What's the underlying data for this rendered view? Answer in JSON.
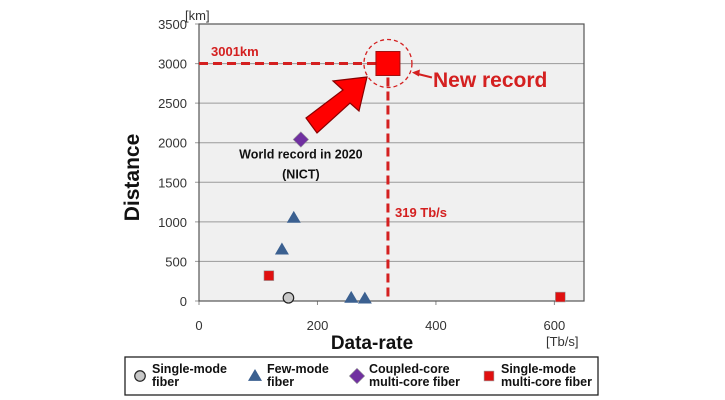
{
  "chart_data": {
    "type": "scatter",
    "xlabel": "Data-rate",
    "ylabel": "Distance",
    "x_unit": "[Tb/s]",
    "y_unit": "[km]",
    "xlim": [
      0,
      650
    ],
    "ylim": [
      0,
      3500
    ],
    "xticks": [
      0,
      200,
      400,
      600
    ],
    "yticks": [
      0,
      500,
      1000,
      1500,
      2000,
      2500,
      3000,
      3500
    ],
    "grid": "horizontal",
    "legend_placement": "bottom",
    "series": [
      {
        "name": "Single-mode fiber",
        "legend_lines": [
          "Single-mode",
          "fiber"
        ],
        "marker": "circle",
        "color": "#c8c8c8",
        "points": [
          [
            151,
            40
          ]
        ]
      },
      {
        "name": "Few-mode fiber",
        "legend_lines": [
          "Few-mode",
          "fiber"
        ],
        "marker": "triangle",
        "color": "#3b6090",
        "points": [
          [
            140,
            650
          ],
          [
            160,
            1050
          ],
          [
            257,
            40
          ],
          [
            280,
            30
          ]
        ]
      },
      {
        "name": "Coupled-core multi-core fiber",
        "legend_lines": [
          "Coupled-core",
          "multi-core fiber"
        ],
        "marker": "diamond",
        "color": "#7030a0",
        "points": [
          [
            172,
            2040
          ]
        ]
      },
      {
        "name": "Single-mode multi-core fiber",
        "legend_lines": [
          "Single-mode",
          "multi-core fiber"
        ],
        "marker": "square",
        "color": "#e01010",
        "points": [
          [
            118,
            320
          ],
          [
            610,
            50
          ]
        ]
      }
    ],
    "record": {
      "x": 319,
      "y": 3001,
      "x_label": "319 Tb/s",
      "y_label": "3001km",
      "label": "New record",
      "color": "#d42020"
    },
    "annotations": [
      {
        "lines": [
          "World record in 2020",
          "(NICT)"
        ],
        "x": 172,
        "y": 2040
      }
    ]
  }
}
